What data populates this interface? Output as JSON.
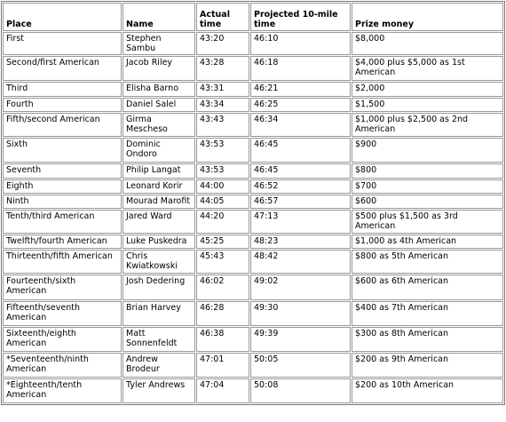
{
  "table": {
    "header": [
      "Place",
      "Name",
      "Actual time",
      "Projected 10-mile time",
      "Prize money"
    ],
    "rows": [
      [
        "First",
        "Stephen Sambu",
        "43:20",
        "46:10",
        "$8,000"
      ],
      [
        "Second/first American",
        "Jacob Riley",
        "43:28",
        "46:18",
        "$4,000 plus $5,000 as 1st American"
      ],
      [
        "Third",
        "Elisha Barno",
        "43:31",
        "46:21",
        "$2,000"
      ],
      [
        "Fourth",
        "Daniel Salel",
        "43:34",
        "46:25",
        "$1,500"
      ],
      [
        "Fifth/second American",
        "Girma Mescheso",
        "43:43",
        "46:34",
        "$1,000 plus $2,500 as 2nd American"
      ],
      [
        "Sixth",
        "Dominic Ondoro",
        "43:53",
        "46:45",
        "$900"
      ],
      [
        "Seventh",
        "Philip Langat",
        "43:53",
        "46:45",
        "$800"
      ],
      [
        "Eighth",
        "Leonard Korir",
        "44:00",
        "46:52",
        "$700"
      ],
      [
        "Ninth",
        "Mourad Marofit",
        "44:05",
        "46:57",
        "$600"
      ],
      [
        "Tenth/third American",
        "Jared Ward",
        "44:20",
        "47:13",
        "$500 plus $1,500 as 3rd American"
      ],
      [
        "Twelfth/fourth American",
        "Luke Puskedra",
        "45:25",
        "48:23",
        "$1,000 as 4th American"
      ],
      [
        "Thirteenth/fifth American",
        "Chris Kwiatkowski",
        "45:43",
        "48:42",
        "$800 as 5th American"
      ],
      [
        "Fourteenth/sixth American",
        "Josh Dedering",
        "46:02",
        "49:02",
        "$600 as 6th American"
      ],
      [
        "Fifteenth/seventh American",
        "Brian Harvey",
        "46:28",
        "49:30",
        "$400 as 7th American"
      ],
      [
        "Sixteenth/eighth American",
        "Matt Sonnenfeldt",
        "46:38",
        "49:39",
        "$300 as 8th American"
      ],
      [
        "*Seventeenth/ninth American",
        "Andrew Brodeur",
        "47:01",
        "50:05",
        "$200 as 9th American"
      ],
      [
        "*Eighteenth/tenth American",
        "Tyler Andrews",
        "47:04",
        "50:08",
        "$200 as 10th American"
      ]
    ]
  }
}
